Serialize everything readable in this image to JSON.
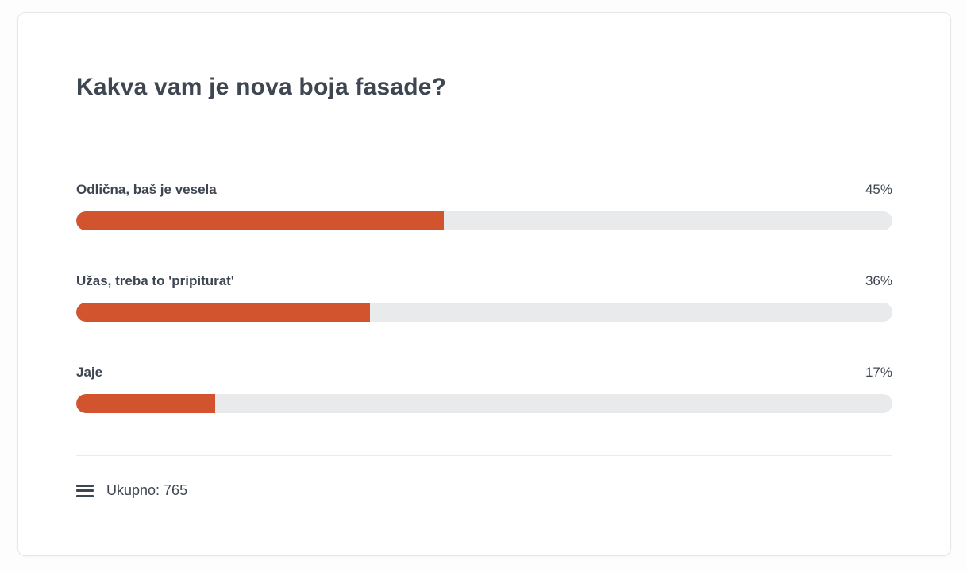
{
  "poll": {
    "title": "Kakva vam je nova boja fasade?",
    "options": [
      {
        "label": "Odlična, baš je vesela",
        "percent_label": "45%",
        "percent_value": 45
      },
      {
        "label": "Užas, treba to 'pripiturat'",
        "percent_label": "36%",
        "percent_value": 36
      },
      {
        "label": "Jaje",
        "percent_label": "17%",
        "percent_value": 17
      }
    ],
    "footer": {
      "icon": "list-menu-icon",
      "total_label": "Ukupno: 765"
    },
    "colors": {
      "bar_fill": "#d2542f",
      "bar_track": "#e9eaec",
      "text": "#3e4651",
      "divider": "#ebebeb",
      "card_border": "#e5e6e8"
    }
  }
}
